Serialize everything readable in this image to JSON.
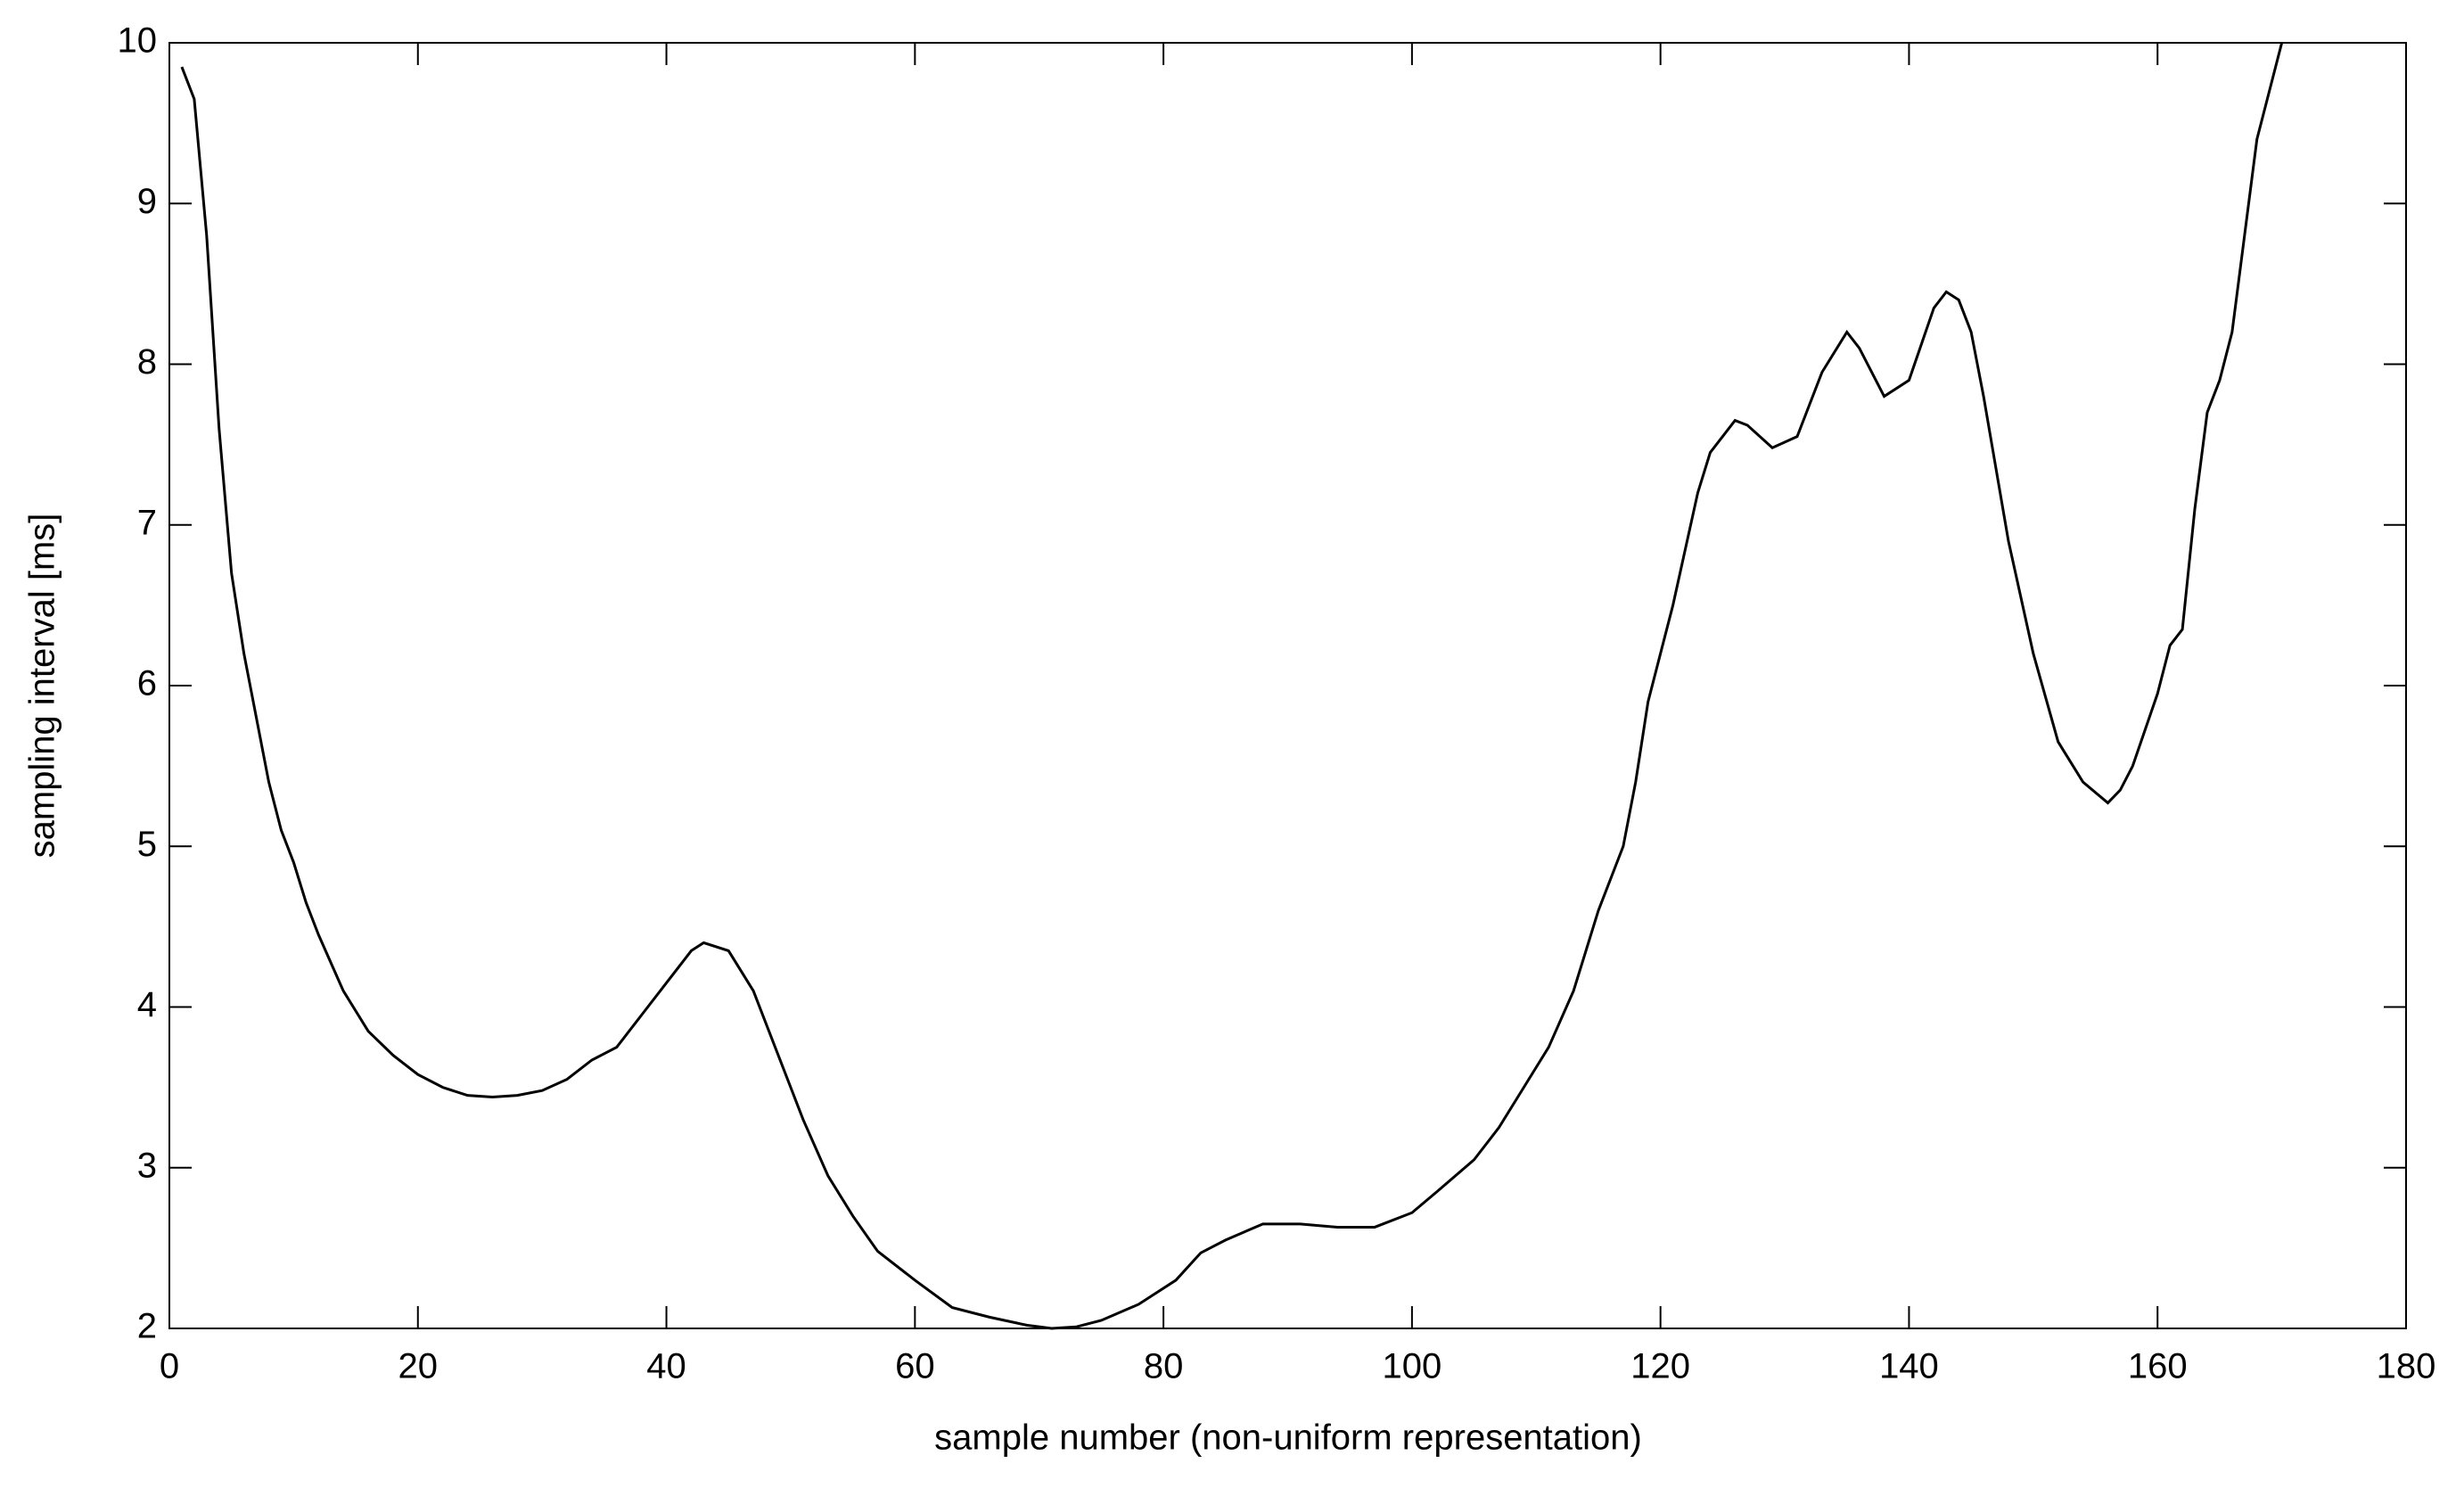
{
  "chart_data": {
    "type": "line",
    "xlabel": "sample number (non-uniform representation)",
    "ylabel": "sampling interval [ms]",
    "x": [
      1,
      2,
      3,
      4,
      5,
      6,
      7,
      8,
      9,
      10,
      11,
      12,
      14,
      16,
      18,
      20,
      22,
      24,
      26,
      28,
      30,
      32,
      34,
      36,
      38,
      40,
      42,
      43,
      45,
      47,
      49,
      51,
      53,
      55,
      57,
      60,
      63,
      66,
      69,
      71,
      73,
      75,
      78,
      81,
      83,
      85,
      88,
      91,
      94,
      97,
      100,
      102,
      105,
      107,
      109,
      111,
      113,
      115,
      117,
      118,
      119,
      121,
      123,
      124,
      126,
      127,
      129,
      131,
      133,
      135,
      136,
      138,
      140,
      142,
      143,
      144,
      145,
      146,
      148,
      150,
      152,
      154,
      156,
      157,
      158,
      160,
      161,
      162,
      163,
      164,
      165,
      166,
      167,
      168,
      170
    ],
    "series": [
      {
        "color": "#000000",
        "values": [
          9.85,
          9.65,
          8.8,
          7.6,
          6.7,
          6.2,
          5.8,
          5.4,
          5.1,
          4.9,
          4.65,
          4.45,
          4.1,
          3.85,
          3.7,
          3.58,
          3.5,
          3.45,
          3.44,
          3.45,
          3.48,
          3.55,
          3.67,
          3.75,
          3.95,
          4.15,
          4.35,
          4.4,
          4.35,
          4.1,
          3.7,
          3.3,
          2.95,
          2.7,
          2.48,
          2.3,
          2.13,
          2.07,
          2.02,
          2.0,
          2.01,
          2.05,
          2.15,
          2.3,
          2.47,
          2.55,
          2.65,
          2.65,
          2.63,
          2.63,
          2.72,
          2.85,
          3.05,
          3.25,
          3.5,
          3.75,
          4.1,
          4.6,
          5.0,
          5.4,
          5.9,
          6.5,
          7.2,
          7.45,
          7.65,
          7.62,
          7.48,
          7.55,
          7.95,
          8.2,
          8.1,
          7.8,
          7.9,
          8.35,
          8.45,
          8.4,
          8.2,
          7.8,
          6.9,
          6.2,
          5.65,
          5.4,
          5.27,
          5.35,
          5.5,
          5.95,
          6.25,
          6.35,
          7.1,
          7.7,
          7.9,
          8.2,
          8.8,
          9.4,
          10.0
        ]
      }
    ],
    "xlim": [
      0,
      180
    ],
    "xticks": [
      0,
      20,
      40,
      60,
      80,
      100,
      120,
      140,
      160,
      180
    ],
    "ylim": [
      2,
      10
    ],
    "yticks": [
      2,
      3,
      4,
      5,
      6,
      7,
      8,
      9,
      10
    ],
    "grid": false
  }
}
